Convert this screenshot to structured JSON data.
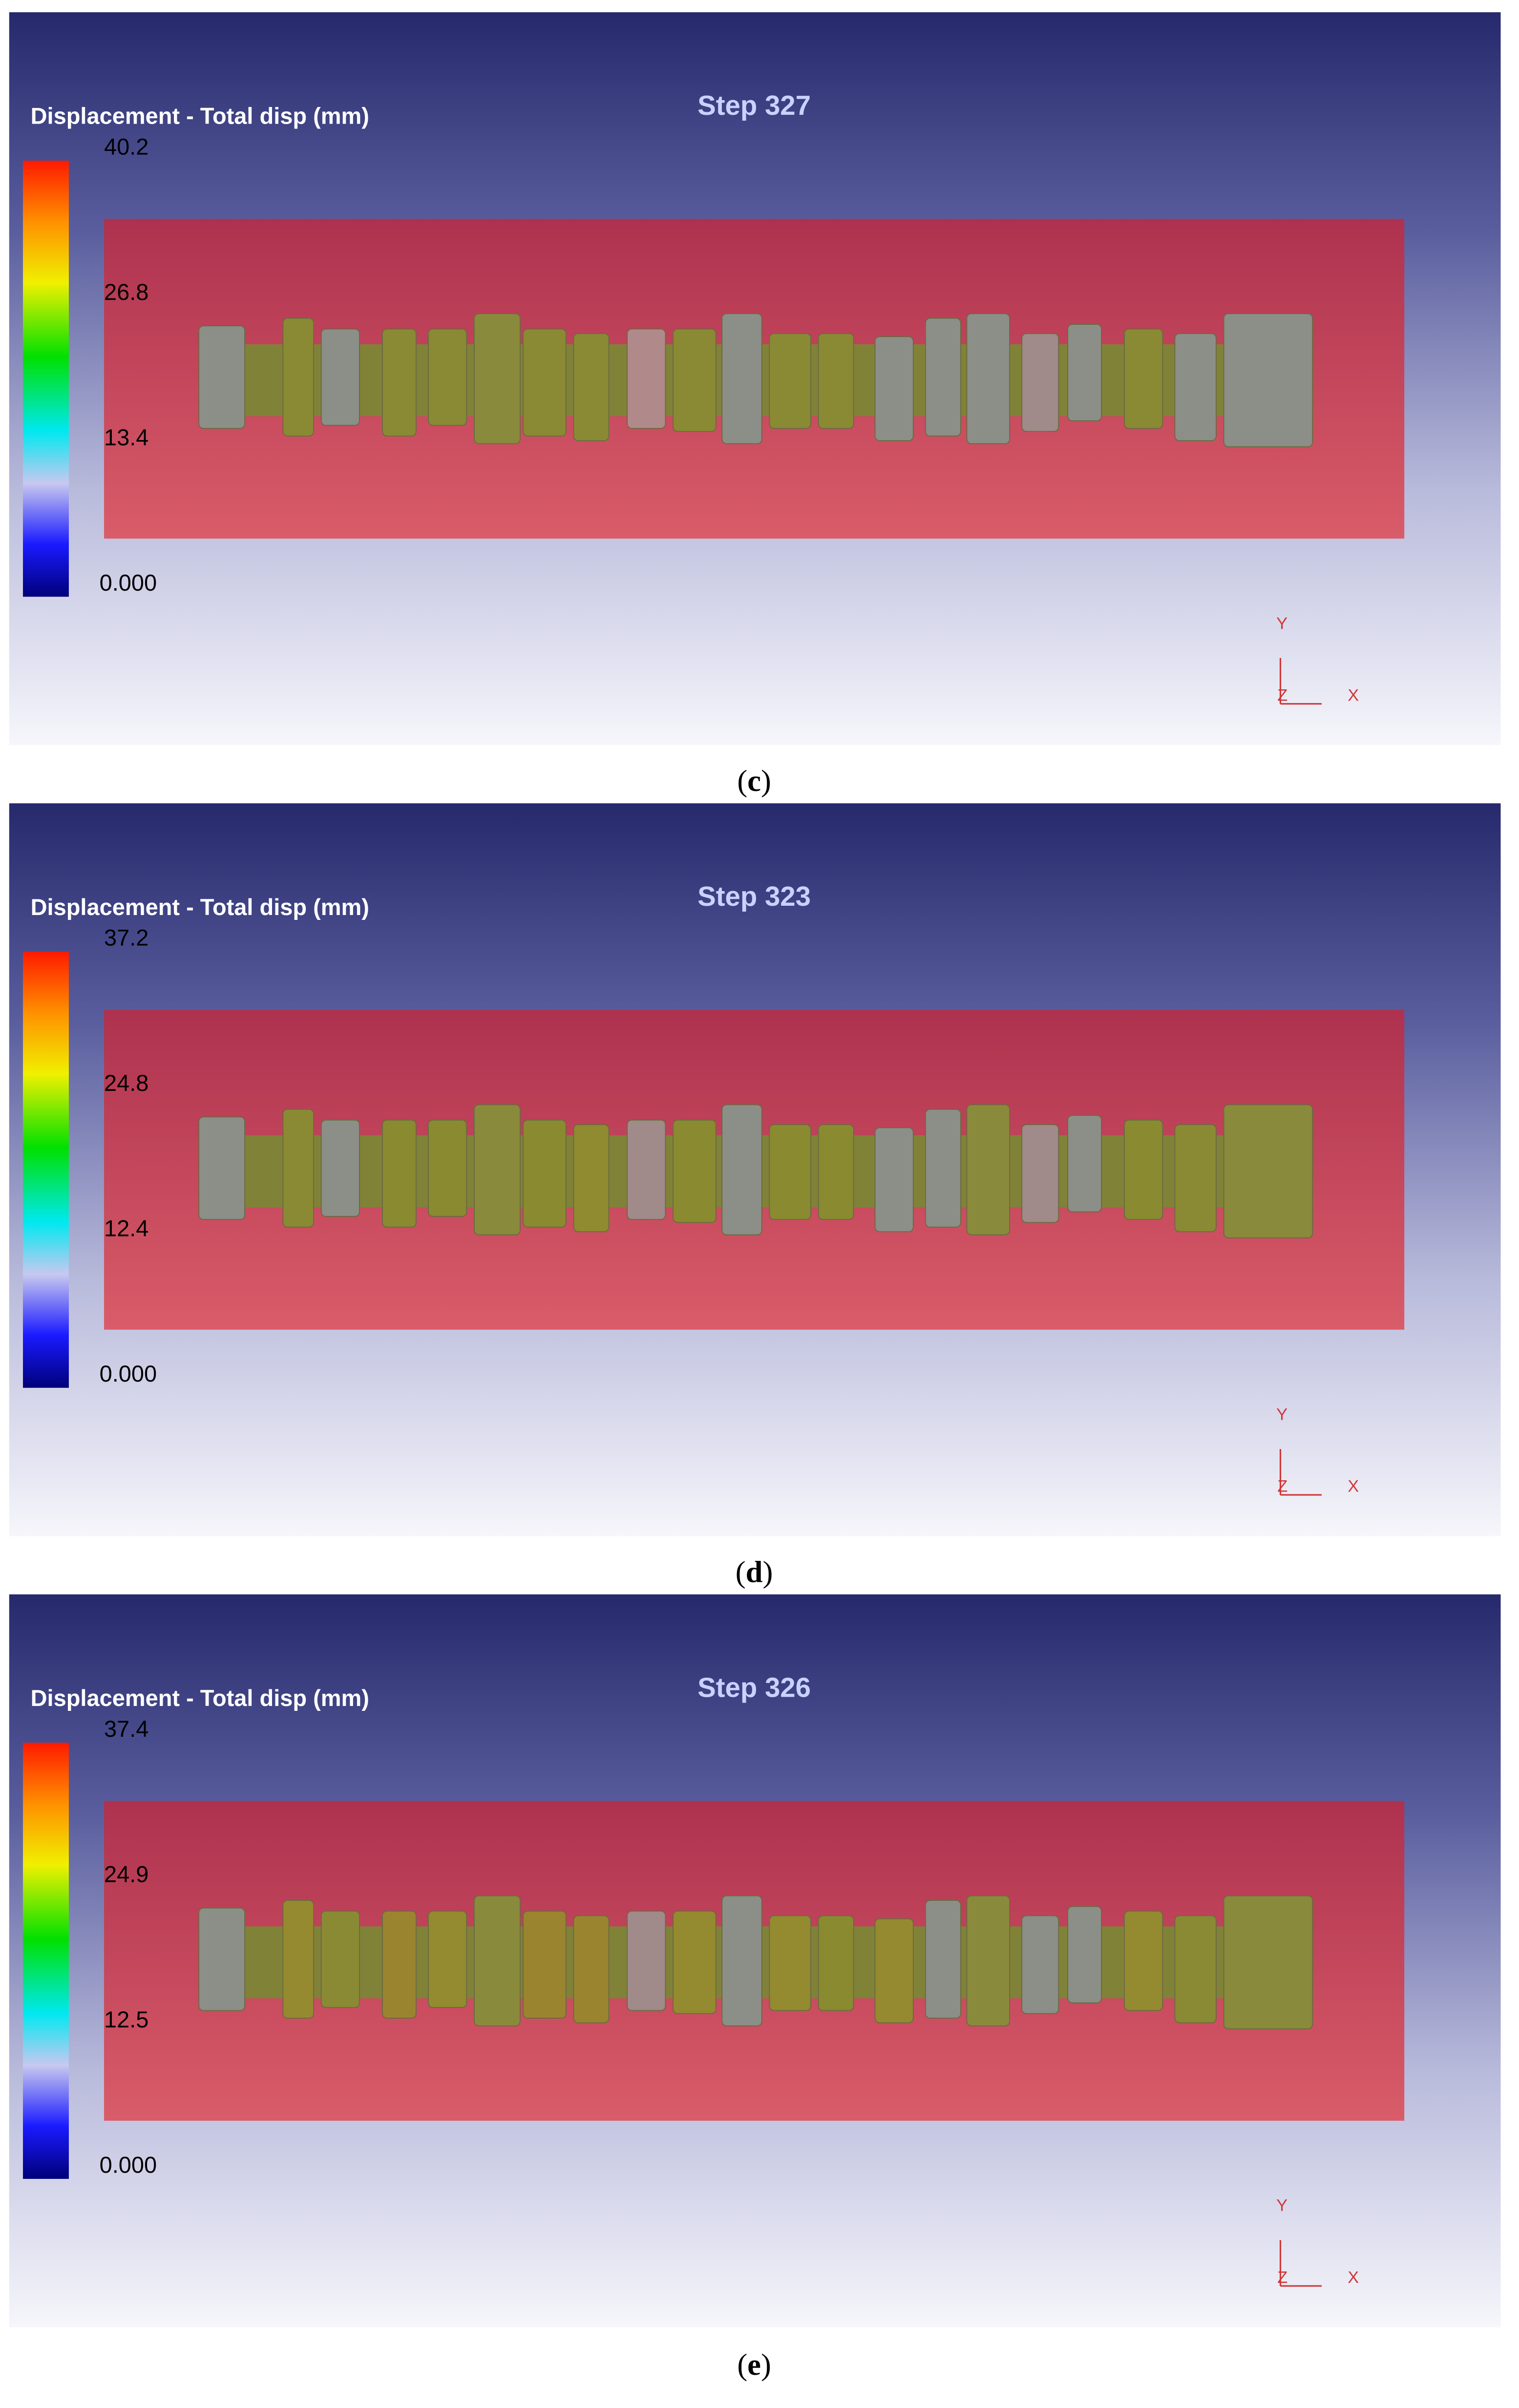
{
  "panels": [
    {
      "caption": [
        "(",
        "c",
        ")"
      ],
      "step": "Step 327",
      "legend_title": "Displacement - Total disp (mm)",
      "legend_ticks": [
        "40.2",
        "26.8",
        "13.4",
        "0.000"
      ],
      "axes": [
        "Y",
        "Z",
        "X"
      ]
    },
    {
      "caption": [
        "(",
        "d",
        ")"
      ],
      "step": "Step 323",
      "legend_title": "Displacement - Total disp (mm)",
      "legend_ticks": [
        "37.2",
        "24.8",
        "12.4",
        "0.000"
      ],
      "axes": [
        "Y",
        "Z",
        "X"
      ]
    },
    {
      "caption": [
        "(",
        "e",
        ")"
      ],
      "step": "Step 326",
      "legend_title": "Displacement - Total disp (mm)",
      "legend_ticks": [
        "37.4",
        "24.9",
        "12.5",
        "0.000"
      ],
      "axes": [
        "Y",
        "Z",
        "X"
      ]
    }
  ]
}
